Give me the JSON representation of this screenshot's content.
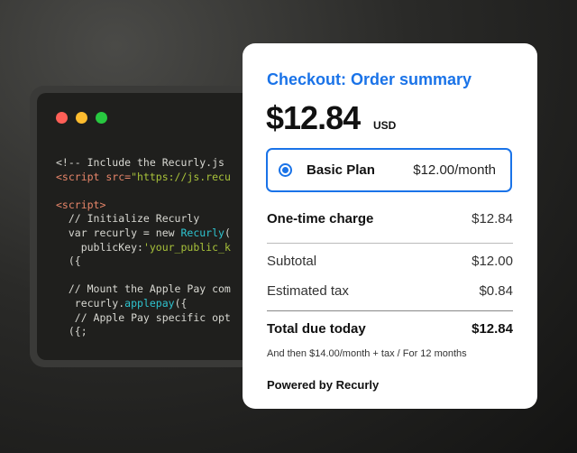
{
  "code_window": {
    "colors": {
      "close": "#ff5f57",
      "minimize": "#febc2e",
      "maximize": "#28c840"
    },
    "lines": [
      [
        {
          "t": "<!-- Include the Recurly.js",
          "c": ""
        }
      ],
      [
        {
          "t": "<script src=",
          "c": "tag"
        },
        {
          "t": "\"https://js.recu",
          "c": "str"
        }
      ],
      [
        {
          "t": "",
          "c": ""
        }
      ],
      [
        {
          "t": "<script>",
          "c": "tag"
        }
      ],
      [
        {
          "t": "  // Initialize Recurly",
          "c": ""
        }
      ],
      [
        {
          "t": "  var recurly = new ",
          "c": ""
        },
        {
          "t": "Recurly",
          "c": "fn"
        },
        {
          "t": "(",
          "c": ""
        }
      ],
      [
        {
          "t": "    publicKey:",
          "c": ""
        },
        {
          "t": "'your_public_k",
          "c": "str"
        }
      ],
      [
        {
          "t": "  ({",
          "c": ""
        }
      ],
      [
        {
          "t": "",
          "c": ""
        }
      ],
      [
        {
          "t": "  // Mount the Apple Pay com",
          "c": ""
        }
      ],
      [
        {
          "t": "   recurly.",
          "c": ""
        },
        {
          "t": "applepay",
          "c": "fn"
        },
        {
          "t": "({",
          "c": ""
        }
      ],
      [
        {
          "t": "   // Apple Pay specific opt",
          "c": ""
        }
      ],
      [
        {
          "t": "  ({;",
          "c": ""
        }
      ]
    ]
  },
  "checkout": {
    "title": "Checkout: Order summary",
    "amount": "$12.84",
    "currency": "USD",
    "plan": {
      "name": "Basic Plan",
      "price": "$12.00/month",
      "selected": true
    },
    "one_time": {
      "label": "One-time charge",
      "value": "$12.84"
    },
    "subtotal": {
      "label": "Subtotal",
      "value": "$12.00"
    },
    "tax": {
      "label": "Estimated tax",
      "value": "$0.84"
    },
    "total": {
      "label": "Total due today",
      "value": "$12.84"
    },
    "note": "And then $14.00/month + tax / For 12 months",
    "powered_by": "Powered by Recurly",
    "accent": "#1a73e8"
  }
}
